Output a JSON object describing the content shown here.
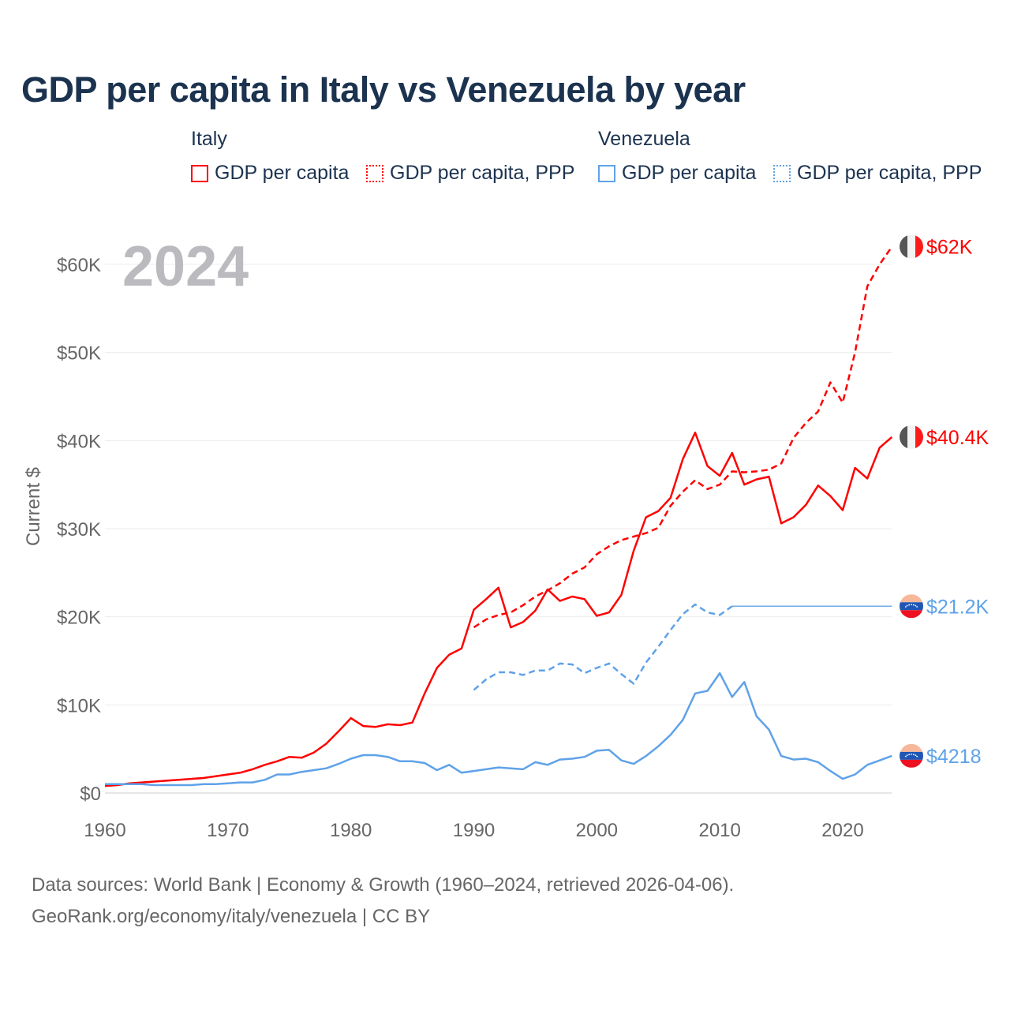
{
  "title": "GDP per capita in Italy vs Venezuela by year",
  "legend": {
    "groups": [
      {
        "name": "Italy",
        "items": [
          "GDP per capita",
          "GDP per capita, PPP"
        ]
      },
      {
        "name": "Venezuela",
        "items": [
          "GDP per capita",
          "GDP per capita, PPP"
        ]
      }
    ]
  },
  "colors": {
    "italy": "#ff0000",
    "venezuela": "#5fa2e8"
  },
  "footer": {
    "line1": "Data sources: World Bank | Economy & Growth (1960–2024, retrieved 2026-04-06).",
    "line2": "GeoRank.org/economy/italy/venezuela | CC BY"
  },
  "chart_data": {
    "type": "line",
    "title": "GDP per capita in Italy vs Venezuela by year",
    "year_label": "2024",
    "ylabel": "Current $",
    "xlim": [
      1960,
      2024
    ],
    "ylim": [
      0,
      60000
    ],
    "x_ticks": [
      "1960",
      "1970",
      "1980",
      "1990",
      "2000",
      "2010",
      "2020"
    ],
    "y_ticks": [
      "$0",
      "$10K",
      "$20K",
      "$30K",
      "$40K",
      "$50K",
      "$60K"
    ],
    "grid": true,
    "end_labels": [
      "$62K",
      "$40.4K",
      "$21.2K",
      "$4218"
    ],
    "series": [
      {
        "name": "Italy GDP per capita",
        "country": "Italy",
        "dashed": false,
        "start": 1960,
        "values": [
          800,
          900,
          1100,
          1200,
          1300,
          1400,
          1500,
          1600,
          1700,
          1900,
          2100,
          2300,
          2700,
          3200,
          3600,
          4100,
          4000,
          4600,
          5600,
          7000,
          8500,
          7600,
          7500,
          7800,
          7700,
          8000,
          11300,
          14200,
          15700,
          16400,
          20800,
          22000,
          23300,
          18800,
          19400,
          20700,
          23100,
          21800,
          22300,
          22000,
          20100,
          20500,
          22500,
          27500,
          31300,
          32000,
          33500,
          37900,
          40900,
          37100,
          36000,
          38600,
          35000,
          35600,
          35900,
          30600,
          31300,
          32700,
          34900,
          33700,
          32100,
          36900,
          35700,
          39200,
          40400
        ]
      },
      {
        "name": "Italy GDP per capita, PPP",
        "country": "Italy",
        "dashed": true,
        "start": 1990,
        "values": [
          18800,
          19700,
          20200,
          20500,
          21300,
          22300,
          23000,
          23800,
          24900,
          25600,
          27100,
          28000,
          28700,
          29100,
          29500,
          30100,
          32600,
          34200,
          35500,
          34500,
          35000,
          36500,
          36400,
          36500,
          36700,
          37400,
          40300,
          42000,
          43300,
          46600,
          44300,
          50000,
          57500,
          60000,
          62000
        ]
      },
      {
        "name": "Venezuela GDP per capita",
        "country": "Venezuela",
        "dashed": false,
        "start": 1960,
        "values": [
          1000,
          1000,
          1000,
          1000,
          900,
          900,
          900,
          900,
          1000,
          1000,
          1100,
          1200,
          1200,
          1500,
          2100,
          2100,
          2400,
          2600,
          2800,
          3300,
          3900,
          4300,
          4300,
          4100,
          3600,
          3600,
          3400,
          2600,
          3200,
          2300,
          2500,
          2700,
          2900,
          2800,
          2700,
          3500,
          3200,
          3800,
          3900,
          4100,
          4800,
          4900,
          3700,
          3300,
          4200,
          5300,
          6600,
          8300,
          11300,
          11600,
          13600,
          10900,
          12600,
          8700,
          7200,
          4200,
          3800,
          3900,
          3500,
          2500,
          1600,
          2100,
          3200,
          3700,
          4218
        ]
      },
      {
        "name": "Venezuela GDP per capita, PPP",
        "country": "Venezuela",
        "dashed": true,
        "start": 1990,
        "values": [
          11700,
          12900,
          13700,
          13700,
          13400,
          13900,
          13900,
          14700,
          14600,
          13600,
          14200,
          14700,
          13500,
          12400,
          14800,
          16600,
          18500,
          20300,
          21400,
          20500,
          20200,
          21200
        ],
        "carried_forward_to": 2024
      }
    ]
  }
}
